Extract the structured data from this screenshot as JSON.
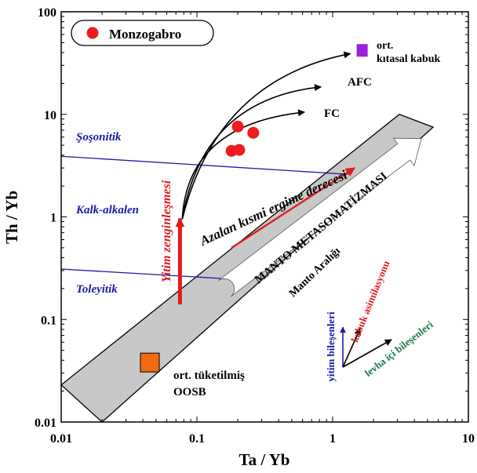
{
  "chart_data": {
    "type": "scatter",
    "xscale": "log",
    "yscale": "log",
    "xlim": [
      0.01,
      10
    ],
    "ylim": [
      0.01,
      100
    ],
    "xlabel": "Ta / Yb",
    "ylabel": "Th / Yb",
    "xticks": [
      "0.01",
      "0.1",
      "1",
      "10"
    ],
    "yticks": [
      "0.01",
      "0.1",
      "1",
      "10",
      "100"
    ],
    "legend": {
      "label": "Monzogabro",
      "placement": "top-left",
      "color": "#ee1c1c"
    },
    "series": [
      {
        "name": "Monzogabro",
        "color": "#ee1c1c",
        "points": [
          {
            "x": 0.2,
            "y": 7.6
          },
          {
            "x": 0.26,
            "y": 6.6
          },
          {
            "x": 0.18,
            "y": 4.4
          },
          {
            "x": 0.205,
            "y": 4.5
          }
        ]
      }
    ],
    "reference_points": [
      {
        "label": "ort. kıtasal kabuk",
        "label_lines": [
          "ort.",
          "kıtasal kabuk"
        ],
        "x": 1.65,
        "y": 42,
        "color": "#9b1fd6"
      },
      {
        "label": "ort. tüketilmiş OOSB",
        "label_lines": [
          "ort. tüketilmiş",
          "OOSB"
        ],
        "x": 0.045,
        "y": 0.038,
        "color": "#f26b0e"
      }
    ],
    "field_labels": [
      {
        "text": "Şoşonitik",
        "color": "#1a1aa6"
      },
      {
        "text": "Kalk-alkalen",
        "color": "#1a1aa6"
      },
      {
        "text": "Toleyitik",
        "color": "#1a1aa6"
      }
    ],
    "boundary_lines": [
      {
        "from": [
          0.01,
          3.9
        ],
        "to": [
          1.3,
          2.6
        ]
      },
      {
        "from": [
          0.01,
          0.31
        ],
        "to": [
          0.16,
          0.25
        ]
      }
    ],
    "mantle_array": {
      "label": "Manto Aralığı",
      "fill": "#c8c8c8",
      "corners": [
        [
          0.01,
          0.023
        ],
        [
          3.1,
          10
        ],
        [
          5.5,
          7.5
        ],
        [
          0.02,
          0.01
        ]
      ]
    },
    "arrows": [
      {
        "label": "MANTO METASOMATİZMASI",
        "color": "#ffffff",
        "from": [
          0.16,
          0.2
        ],
        "to": [
          4.5,
          5.8
        ]
      },
      {
        "label": "Azalan kısmi ergime derecesi",
        "color": "#e01b1b",
        "from": [
          0.18,
          0.5
        ],
        "to": [
          1.45,
          3.0
        ]
      },
      {
        "label": "Yitim zenginleşmesi",
        "color": "#e01b1b",
        "from": [
          0.075,
          0.14
        ],
        "to": [
          0.075,
          1.0
        ]
      }
    ],
    "trend_curves": [
      {
        "label": "FC",
        "color": "#000000",
        "end": [
          0.62,
          10.5
        ]
      },
      {
        "label": "AFC",
        "color": "#000000",
        "end": [
          0.82,
          18.5
        ]
      },
      {
        "label": "",
        "color": "#000000",
        "end": [
          1.35,
          39
        ]
      }
    ],
    "vector_diagram": [
      {
        "label": "yitim bileşenleri",
        "color": "#1a1aa6"
      },
      {
        "label": "kabuk asimilasyonu",
        "color": "#e01b1b"
      },
      {
        "label": "levha içi bileşenleri",
        "color": "#19774a"
      }
    ]
  }
}
